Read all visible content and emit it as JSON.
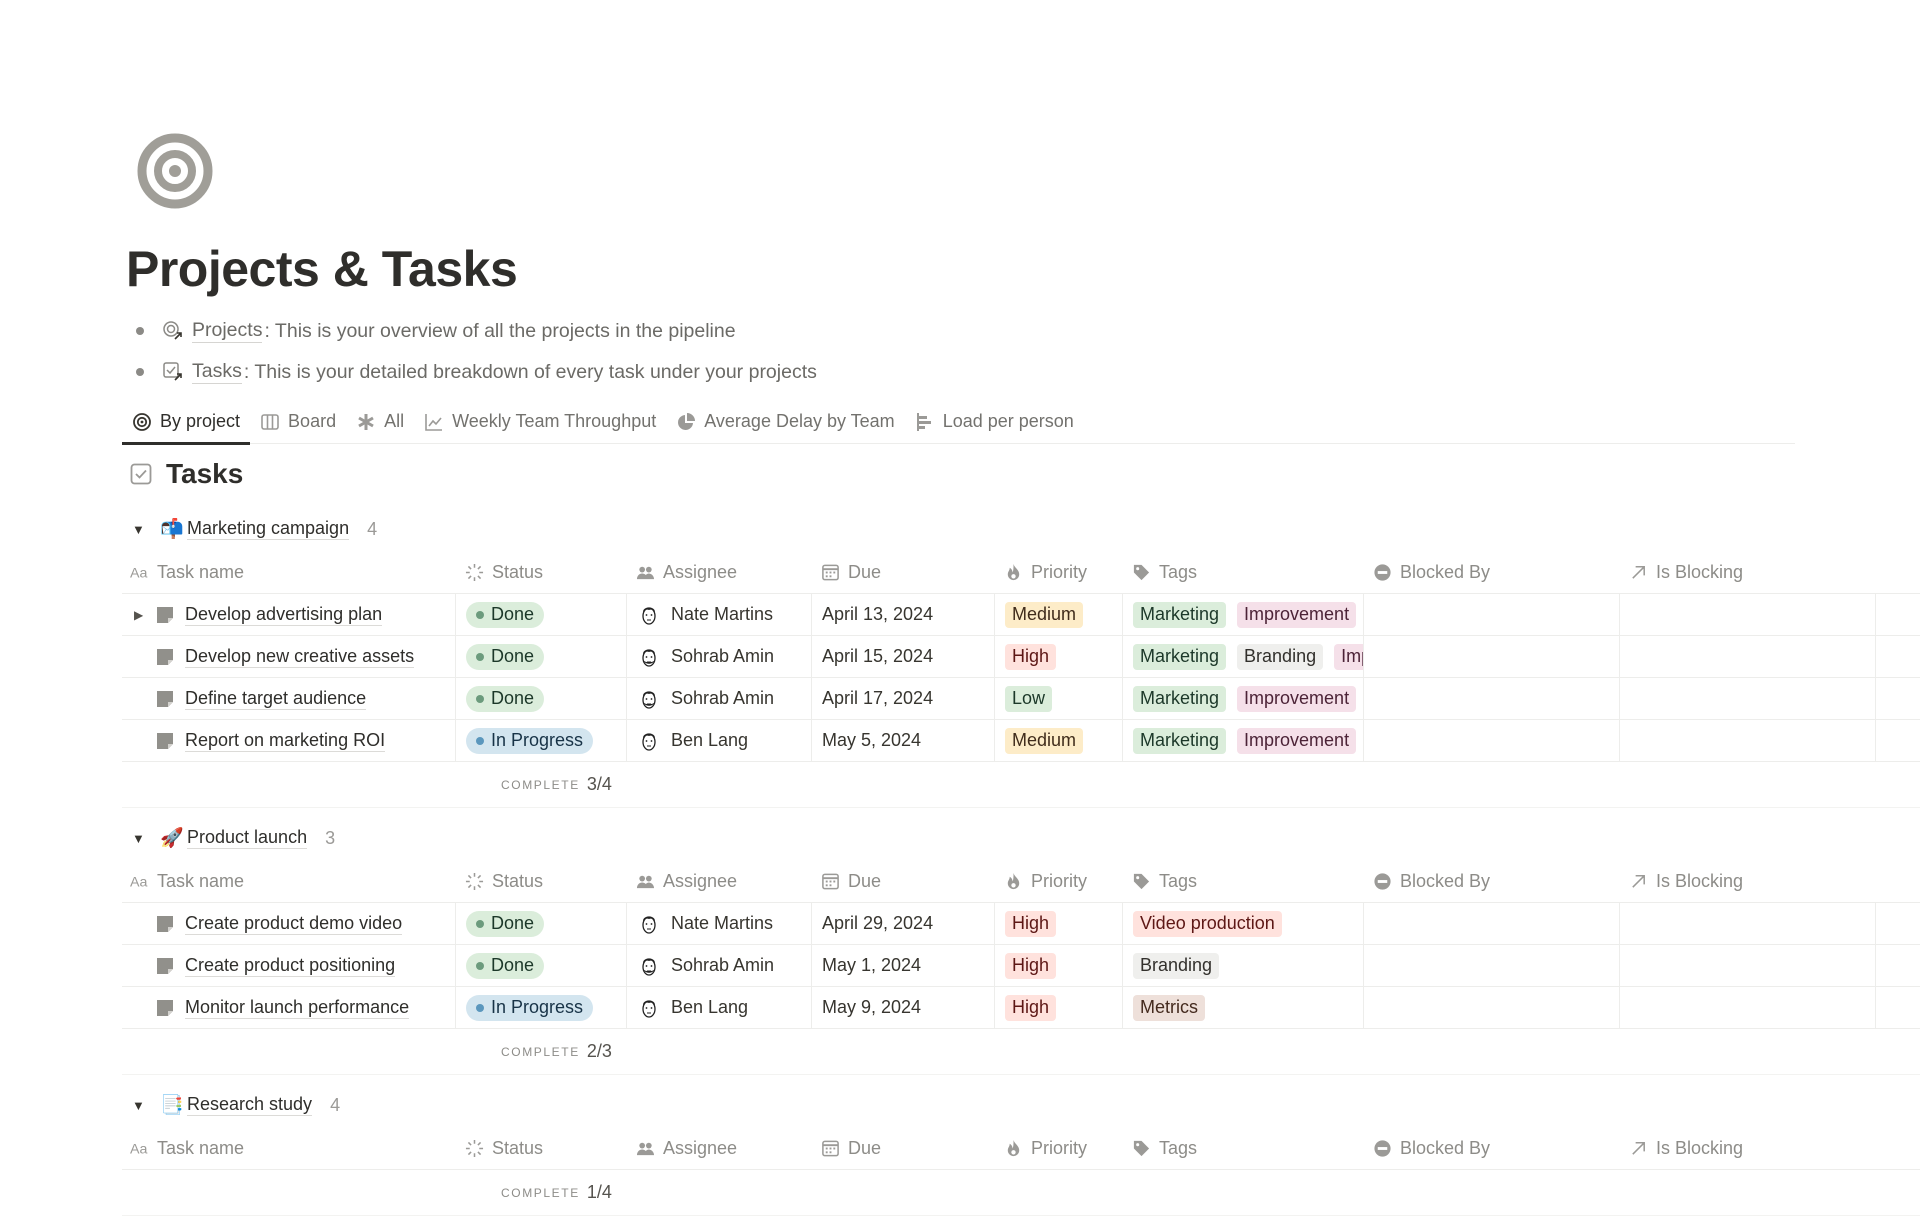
{
  "page": {
    "title": "Projects & Tasks",
    "icon": "target-icon",
    "bullets": [
      {
        "link": "Projects",
        "text": ": This is your overview of all the projects in the pipeline",
        "icon": "target-link-icon"
      },
      {
        "link": "Tasks",
        "text": ": This is your detailed breakdown of every task under your projects",
        "icon": "checkbox-link-icon"
      }
    ]
  },
  "tabs": [
    {
      "label": "By project",
      "icon": "target-icon",
      "active": true
    },
    {
      "label": "Board",
      "icon": "board-icon"
    },
    {
      "label": "All",
      "icon": "asterisk-icon"
    },
    {
      "label": "Weekly Team Throughput",
      "icon": "line-chart-icon"
    },
    {
      "label": "Average Delay by Team",
      "icon": "pie-chart-icon"
    },
    {
      "label": "Load per person",
      "icon": "bar-chart-icon"
    }
  ],
  "database": {
    "title": "Tasks",
    "icon": "checkbox-icon"
  },
  "columns": [
    {
      "label": "Task name",
      "icon": "text-icon"
    },
    {
      "label": "Status",
      "icon": "status-icon"
    },
    {
      "label": "Assignee",
      "icon": "people-icon"
    },
    {
      "label": "Due",
      "icon": "calendar-icon"
    },
    {
      "label": "Priority",
      "icon": "fire-icon"
    },
    {
      "label": "Tags",
      "icon": "tag-icon"
    },
    {
      "label": "Blocked By",
      "icon": "blocked-icon"
    },
    {
      "label": "Is Blocking",
      "icon": "arrow-up-right-icon"
    }
  ],
  "complete_label": "COMPLETE",
  "colors": {
    "status": {
      "Done": {
        "bg": "#dbeddb",
        "fg": "#1c3829",
        "dot": "#6c9b7d"
      },
      "In Progress": {
        "bg": "#d3e5ef",
        "fg": "#183347",
        "dot": "#5b97bd"
      }
    },
    "priority": {
      "Medium": {
        "bg": "#fdecc8",
        "fg": "#402c1b"
      },
      "High": {
        "bg": "#ffe2dd",
        "fg": "#5d1715"
      },
      "Low": {
        "bg": "#dbeddb",
        "fg": "#1c3829"
      }
    },
    "tags": {
      "Marketing": {
        "bg": "#dbeddb",
        "fg": "#1c3829"
      },
      "Improvement": {
        "bg": "#f5e0e9",
        "fg": "#4c2337"
      },
      "Branding": {
        "bg": "#efefed",
        "fg": "#32302c"
      },
      "Video production": {
        "bg": "#ffe2dd",
        "fg": "#5d1715"
      },
      "Metrics": {
        "bg": "#eee0da",
        "fg": "#442a1e"
      }
    }
  },
  "groups": [
    {
      "name": "Marketing campaign",
      "emoji": "📬",
      "count": "4",
      "complete": "3/4",
      "rows": [
        {
          "name": "Develop advertising plan",
          "expandable": true,
          "status": "Done",
          "assignee": "Nate Martins",
          "due": "April 13, 2024",
          "priority": "Medium",
          "tags": [
            "Marketing",
            "Improvement"
          ]
        },
        {
          "name": "Develop new creative assets",
          "status": "Done",
          "assignee": "Sohrab Amin",
          "due": "April 15, 2024",
          "priority": "High",
          "tags": [
            "Marketing",
            "Branding",
            "Improvement"
          ]
        },
        {
          "name": "Define target audience",
          "status": "Done",
          "assignee": "Sohrab Amin",
          "due": "April 17, 2024",
          "priority": "Low",
          "tags": [
            "Marketing",
            "Improvement"
          ]
        },
        {
          "name": "Report on marketing ROI",
          "status": "In Progress",
          "assignee": "Ben Lang",
          "due": "May 5, 2024",
          "priority": "Medium",
          "tags": [
            "Marketing",
            "Improvement"
          ]
        }
      ]
    },
    {
      "name": "Product launch",
      "emoji": "🚀",
      "count": "3",
      "complete": "2/3",
      "rows": [
        {
          "name": "Create product demo video",
          "status": "Done",
          "assignee": "Nate Martins",
          "due": "April 29, 2024",
          "priority": "High",
          "tags": [
            "Video production"
          ]
        },
        {
          "name": "Create product positioning",
          "status": "Done",
          "assignee": "Sohrab Amin",
          "due": "May 1, 2024",
          "priority": "High",
          "tags": [
            "Branding"
          ]
        },
        {
          "name": "Monitor launch performance",
          "status": "In Progress",
          "assignee": "Ben Lang",
          "due": "May 9, 2024",
          "priority": "High",
          "tags": [
            "Metrics"
          ]
        }
      ]
    },
    {
      "name": "Research study",
      "emoji": "📑",
      "count": "4",
      "complete": "1/4",
      "rows": []
    }
  ]
}
